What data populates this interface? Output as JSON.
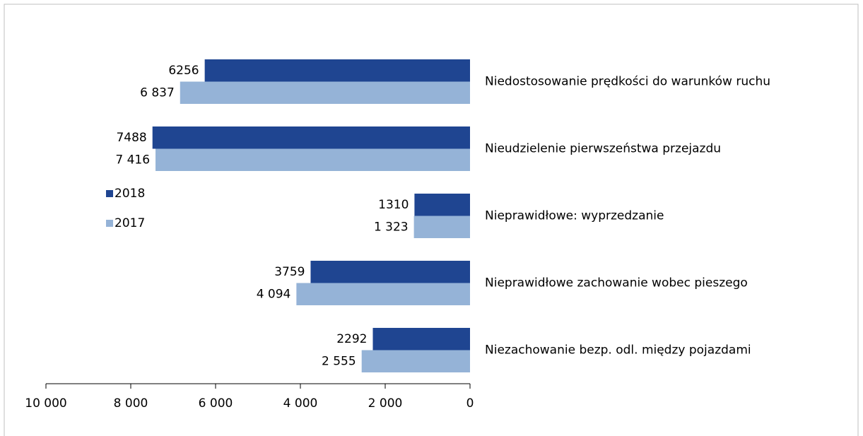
{
  "chart_data": {
    "type": "barh",
    "categories": [
      "Niedostosowanie prędkości do warunków ruchu",
      "Nieudzielenie pierwszeństwa przejazdu",
      "Nieprawidłowe: wyprzedzanie",
      "Nieprawidłowe zachowanie wobec pieszego",
      "Niezachowanie bezp. odl. między pojazdami"
    ],
    "series": [
      {
        "name": "2018",
        "color": "#1f4591",
        "values": [
          6256,
          7488,
          1310,
          3759,
          2292
        ]
      },
      {
        "name": "2017",
        "color": "#95b3d7",
        "values": [
          6837,
          7416,
          1323,
          4094,
          2555
        ],
        "value_labels": [
          "6 837",
          "7 416",
          "1 323",
          "4 094",
          "2 555"
        ]
      }
    ],
    "xlim": [
      10000,
      0
    ],
    "xticks": [
      {
        "value": 10000,
        "label": "10 000"
      },
      {
        "value": 8000,
        "label": "8 000"
      },
      {
        "value": 6000,
        "label": "6 000"
      },
      {
        "value": 4000,
        "label": "4 000"
      },
      {
        "value": 2000,
        "label": "2 000"
      },
      0
    ]
  }
}
